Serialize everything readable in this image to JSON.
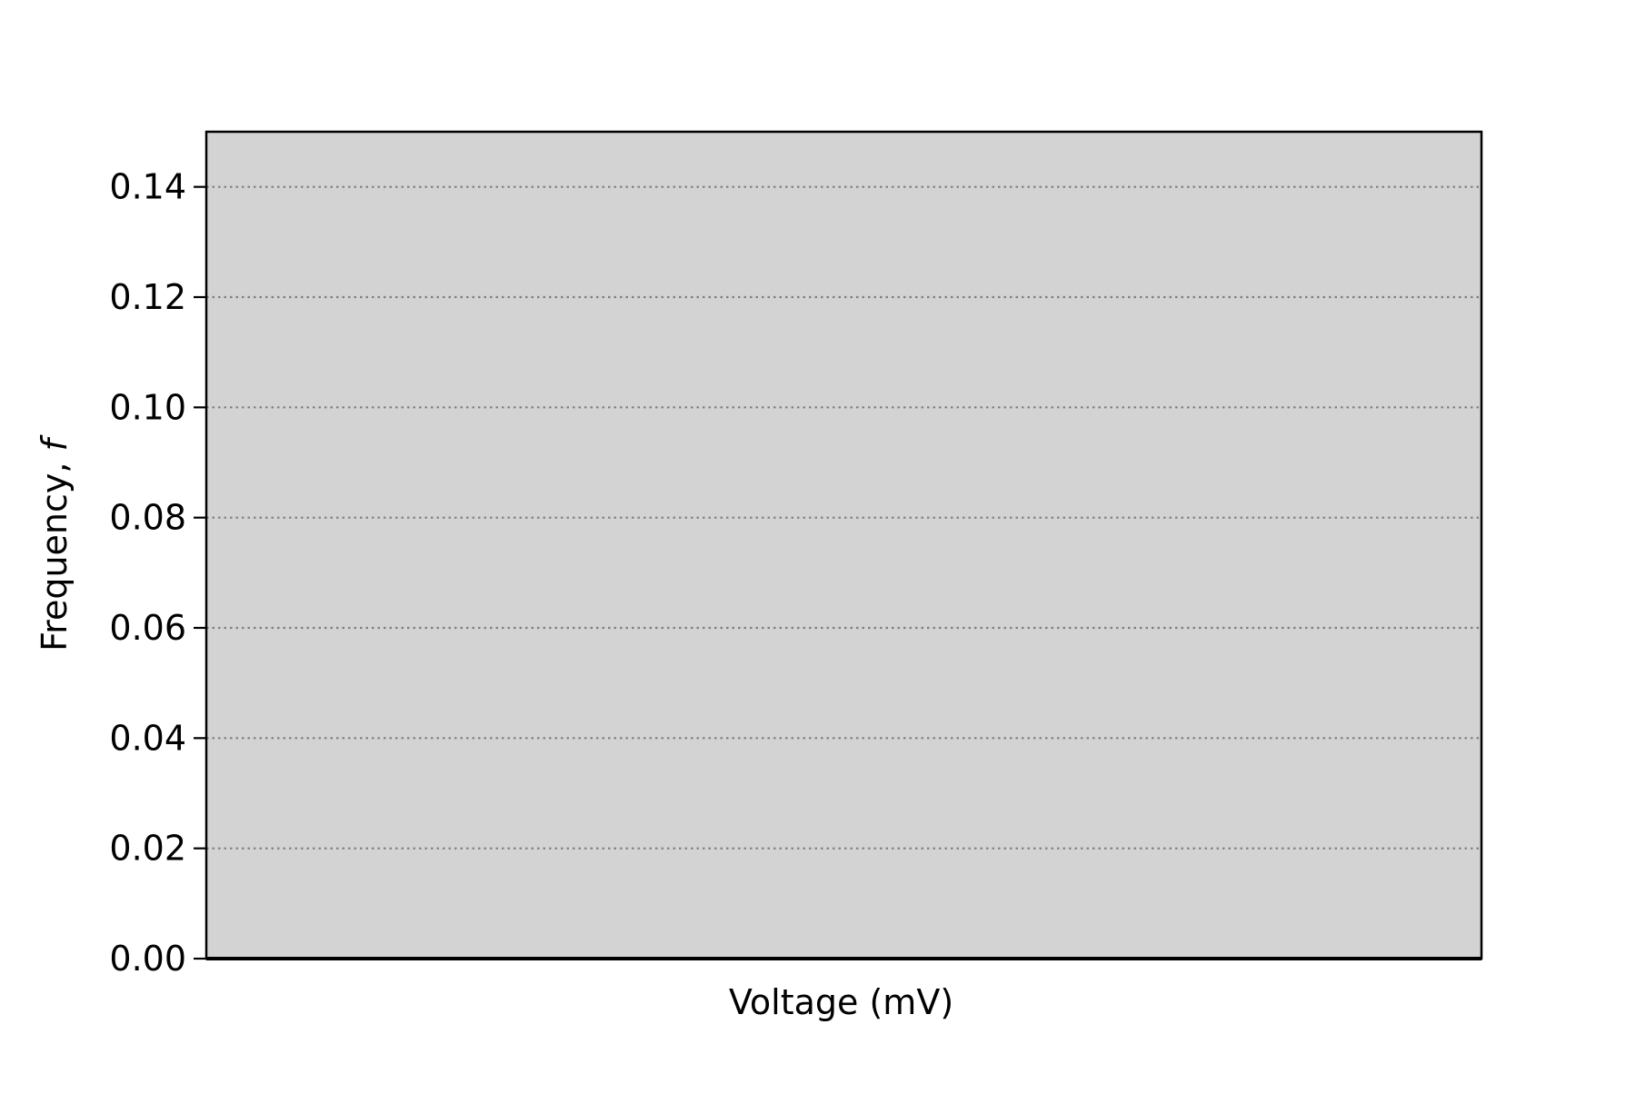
{
  "chart_data": {
    "type": "bar",
    "title": "",
    "xlabel": "Voltage (mV)",
    "ylabel_text": "Frequency, ",
    "ylabel_symbol": "f",
    "ylim": [
      0.0,
      0.15
    ],
    "yticks": [
      0.0,
      0.02,
      0.04,
      0.06,
      0.08,
      0.1,
      0.12,
      0.14
    ],
    "ytick_labels": [
      "0.00",
      "0.02",
      "0.04",
      "0.06",
      "0.08",
      "0.10",
      "0.12",
      "0.14"
    ],
    "xticks": [],
    "categories": [],
    "values": [],
    "grid": {
      "y": true,
      "x": false,
      "style": "dotted"
    },
    "colors": {
      "plot_background": "#d3d3d3",
      "grid": "#808080",
      "axes": "#000000"
    }
  }
}
